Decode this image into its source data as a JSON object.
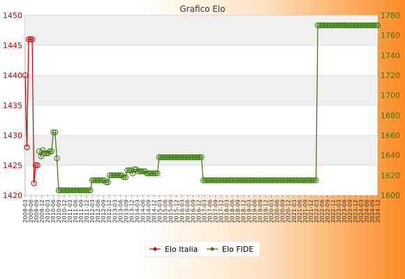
{
  "chart_data": {
    "type": "line",
    "title": "Grafico Elo",
    "left_axis": {
      "ylim": [
        1420,
        1450
      ],
      "ticks": [
        1420,
        1425,
        1430,
        1435,
        1440,
        1445,
        1450
      ],
      "color": "#cc0000"
    },
    "right_axis": {
      "ylim": [
        1600,
        1780
      ],
      "ticks": [
        1600,
        1620,
        1640,
        1660,
        1680,
        1700,
        1720,
        1740,
        1760,
        1780
      ],
      "color": "#337700"
    },
    "x_range": [
      0,
      200
    ],
    "grid": true,
    "legend_position": "bottom",
    "x_tick_labels": [
      "2009-03",
      "2009-06",
      "2009-09",
      "2009-12",
      "2010-03",
      "2010-06",
      "2010-09",
      "2010-12",
      "2011-03",
      "2011-06",
      "2011-09",
      "2011-12",
      "2012-03",
      "2012-06",
      "2012-09",
      "2012-12",
      "2013-03",
      "2013-06",
      "2013-09",
      "2013-12",
      "2014-03",
      "2014-06",
      "2014-09",
      "2014-12",
      "2015-03",
      "2015-06",
      "2015-09",
      "2015-12",
      "2016-03",
      "2016-06",
      "2016-09",
      "2016-12",
      "2017-03",
      "2017-06",
      "2017-09",
      "2017-12",
      "2018-03",
      "2018-06",
      "2018-09",
      "2018-12",
      "2019-03",
      "2019-06",
      "2019-09",
      "2019-12",
      "2020-03",
      "2020-06",
      "2020-09",
      "2020-12",
      "2021-03",
      "2021-06",
      "2021-09",
      "2021-12",
      "2022-03",
      "2022-06",
      "2022-09",
      "2022-12",
      "2023-03",
      "2023-06",
      "2023-09",
      "2023-12",
      "2024-03",
      "2024-06",
      "2024-09",
      "2024-12"
    ],
    "series": [
      {
        "name": "Elo Italia",
        "axis": "left",
        "color": "#cc0000",
        "points": [
          [
            0,
            1440
          ],
          [
            1,
            1428
          ],
          [
            2,
            1446
          ],
          [
            3,
            1446
          ],
          [
            4,
            1446
          ],
          [
            5,
            1422
          ],
          [
            6,
            1425
          ],
          [
            7,
            1425
          ]
        ]
      },
      {
        "name": "Elo FIDE",
        "axis": "right",
        "color": "#337700",
        "points": [
          [
            8,
            1644
          ],
          [
            9,
            1639
          ],
          [
            10,
            1645
          ],
          [
            11,
            1642
          ],
          [
            12,
            1642
          ],
          [
            13,
            1642
          ],
          [
            14,
            1644
          ],
          [
            15,
            1644
          ],
          [
            16,
            1663
          ],
          [
            17,
            1663
          ],
          [
            18,
            1637
          ],
          [
            19,
            1605
          ],
          [
            20,
            1605
          ],
          [
            21,
            1605
          ],
          [
            22,
            1605
          ],
          [
            23,
            1605
          ],
          [
            24,
            1605
          ],
          [
            25,
            1605
          ],
          [
            26,
            1605
          ],
          [
            27,
            1605
          ],
          [
            28,
            1605
          ],
          [
            29,
            1605
          ],
          [
            30,
            1605
          ],
          [
            31,
            1605
          ],
          [
            32,
            1605
          ],
          [
            33,
            1605
          ],
          [
            34,
            1605
          ],
          [
            35,
            1605
          ],
          [
            36,
            1605
          ],
          [
            37,
            1605
          ],
          [
            38,
            1615
          ],
          [
            39,
            1615
          ],
          [
            40,
            1615
          ],
          [
            41,
            1615
          ],
          [
            42,
            1615
          ],
          [
            43,
            1615
          ],
          [
            44,
            1615
          ],
          [
            45,
            1615
          ],
          [
            46,
            1613
          ],
          [
            47,
            1613
          ],
          [
            48,
            1620
          ],
          [
            49,
            1620
          ],
          [
            50,
            1620
          ],
          [
            51,
            1620
          ],
          [
            52,
            1620
          ],
          [
            53,
            1620
          ],
          [
            54,
            1620
          ],
          [
            55,
            1620
          ],
          [
            56,
            1618
          ],
          [
            57,
            1618
          ],
          [
            58,
            1625
          ],
          [
            59,
            1625
          ],
          [
            60,
            1625
          ],
          [
            61,
            1622
          ],
          [
            62,
            1626
          ],
          [
            63,
            1626
          ],
          [
            64,
            1624
          ],
          [
            65,
            1624
          ],
          [
            66,
            1624
          ],
          [
            67,
            1624
          ],
          [
            68,
            1624
          ],
          [
            69,
            1622
          ],
          [
            70,
            1622
          ],
          [
            71,
            1622
          ],
          [
            72,
            1622
          ],
          [
            73,
            1622
          ],
          [
            74,
            1622
          ],
          [
            75,
            1622
          ],
          [
            76,
            1638
          ],
          [
            77,
            1638
          ],
          [
            78,
            1638
          ],
          [
            79,
            1638
          ],
          [
            80,
            1638
          ],
          [
            81,
            1638
          ],
          [
            82,
            1638
          ],
          [
            83,
            1638
          ],
          [
            84,
            1638
          ],
          [
            85,
            1638
          ],
          [
            86,
            1638
          ],
          [
            87,
            1638
          ],
          [
            88,
            1638
          ],
          [
            89,
            1638
          ],
          [
            90,
            1638
          ],
          [
            91,
            1638
          ],
          [
            92,
            1638
          ],
          [
            93,
            1638
          ],
          [
            94,
            1638
          ],
          [
            95,
            1638
          ],
          [
            96,
            1638
          ],
          [
            97,
            1638
          ],
          [
            98,
            1638
          ],
          [
            99,
            1638
          ],
          [
            100,
            1638
          ],
          [
            101,
            1615
          ],
          [
            102,
            1615
          ],
          [
            103,
            1615
          ],
          [
            104,
            1615
          ],
          [
            105,
            1615
          ],
          [
            106,
            1615
          ],
          [
            107,
            1615
          ],
          [
            108,
            1615
          ],
          [
            109,
            1615
          ],
          [
            110,
            1615
          ],
          [
            111,
            1615
          ],
          [
            112,
            1615
          ],
          [
            113,
            1615
          ],
          [
            114,
            1615
          ],
          [
            115,
            1615
          ],
          [
            116,
            1615
          ],
          [
            117,
            1615
          ],
          [
            118,
            1615
          ],
          [
            119,
            1615
          ],
          [
            120,
            1615
          ],
          [
            121,
            1615
          ],
          [
            122,
            1615
          ],
          [
            123,
            1615
          ],
          [
            124,
            1615
          ],
          [
            125,
            1615
          ],
          [
            126,
            1615
          ],
          [
            127,
            1615
          ],
          [
            128,
            1615
          ],
          [
            129,
            1615
          ],
          [
            130,
            1615
          ],
          [
            131,
            1615
          ],
          [
            132,
            1615
          ],
          [
            133,
            1615
          ],
          [
            134,
            1615
          ],
          [
            135,
            1615
          ],
          [
            136,
            1615
          ],
          [
            137,
            1615
          ],
          [
            138,
            1615
          ],
          [
            139,
            1615
          ],
          [
            140,
            1615
          ],
          [
            141,
            1615
          ],
          [
            142,
            1615
          ],
          [
            143,
            1615
          ],
          [
            144,
            1615
          ],
          [
            145,
            1615
          ],
          [
            146,
            1615
          ],
          [
            147,
            1615
          ],
          [
            148,
            1615
          ],
          [
            149,
            1615
          ],
          [
            150,
            1615
          ],
          [
            151,
            1615
          ],
          [
            152,
            1615
          ],
          [
            153,
            1615
          ],
          [
            154,
            1615
          ],
          [
            155,
            1615
          ],
          [
            156,
            1615
          ],
          [
            157,
            1615
          ],
          [
            158,
            1615
          ],
          [
            159,
            1615
          ],
          [
            160,
            1615
          ],
          [
            161,
            1615
          ],
          [
            162,
            1615
          ],
          [
            163,
            1615
          ],
          [
            164,
            1615
          ],
          [
            165,
            1615
          ],
          [
            166,
            1770
          ],
          [
            167,
            1770
          ],
          [
            168,
            1770
          ],
          [
            169,
            1770
          ],
          [
            170,
            1770
          ],
          [
            171,
            1770
          ],
          [
            172,
            1770
          ],
          [
            173,
            1770
          ],
          [
            174,
            1770
          ],
          [
            175,
            1770
          ],
          [
            176,
            1770
          ],
          [
            177,
            1770
          ],
          [
            178,
            1770
          ],
          [
            179,
            1770
          ],
          [
            180,
            1770
          ],
          [
            181,
            1770
          ],
          [
            182,
            1770
          ],
          [
            183,
            1770
          ],
          [
            184,
            1770
          ],
          [
            185,
            1770
          ],
          [
            186,
            1770
          ],
          [
            187,
            1770
          ],
          [
            188,
            1770
          ],
          [
            189,
            1770
          ],
          [
            190,
            1770
          ],
          [
            191,
            1770
          ],
          [
            192,
            1770
          ],
          [
            193,
            1770
          ],
          [
            194,
            1770
          ],
          [
            195,
            1770
          ],
          [
            196,
            1770
          ],
          [
            197,
            1770
          ],
          [
            198,
            1770
          ],
          [
            199,
            1770
          ],
          [
            200,
            1770
          ]
        ]
      }
    ]
  }
}
